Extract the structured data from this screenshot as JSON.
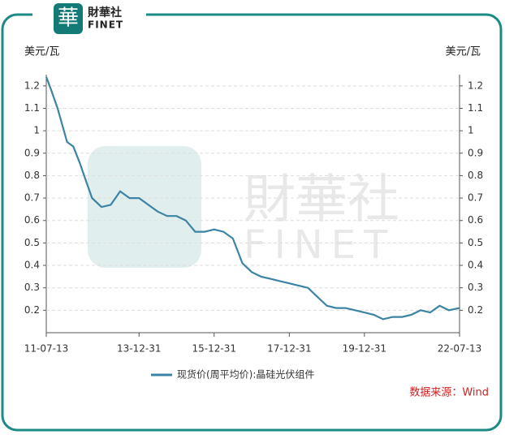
{
  "logo": {
    "cn": "財華社",
    "en": "FINET"
  },
  "chart_data": {
    "type": "line",
    "y_label": "美元/瓦",
    "y2_label": "美元/瓦",
    "source": "数据来源：Wind",
    "x": [
      "11-07-13",
      "11-08-31",
      "11-10-31",
      "11-12-31",
      "12-01-31",
      "12-03-31",
      "12-05-31",
      "12-07-31",
      "12-09-30",
      "12-12-31",
      "13-03-31",
      "13-06-30",
      "13-09-30",
      "13-12-31",
      "14-03-31",
      "14-06-30",
      "14-09-30",
      "14-12-31",
      "15-03-31",
      "15-06-30",
      "15-09-30",
      "15-12-31",
      "16-03-31",
      "16-06-30",
      "16-09-30",
      "16-12-31",
      "17-03-31",
      "17-06-30",
      "17-09-30",
      "17-12-31",
      "18-03-31",
      "18-06-30",
      "18-09-30",
      "18-12-31",
      "19-03-31",
      "19-06-30",
      "19-09-30",
      "19-12-31",
      "20-03-31",
      "20-06-30",
      "20-09-30",
      "20-12-31",
      "21-03-31",
      "21-06-30",
      "21-09-30",
      "21-12-31",
      "22-03-31",
      "22-07-13"
    ],
    "series": [
      {
        "name": "现货价(周平均价):晶硅光伏组件",
        "color": "#3b84a4",
        "values": [
          1.24,
          1.18,
          1.1,
          1.0,
          0.95,
          0.93,
          0.86,
          0.78,
          0.7,
          0.66,
          0.67,
          0.73,
          0.7,
          0.7,
          0.67,
          0.64,
          0.62,
          0.62,
          0.6,
          0.55,
          0.55,
          0.56,
          0.55,
          0.52,
          0.41,
          0.37,
          0.35,
          0.34,
          0.33,
          0.32,
          0.31,
          0.3,
          0.26,
          0.22,
          0.21,
          0.21,
          0.2,
          0.19,
          0.18,
          0.16,
          0.17,
          0.17,
          0.18,
          0.2,
          0.19,
          0.22,
          0.2,
          0.21
        ]
      }
    ],
    "xlim": [
      "11-07-13",
      "22-07-13"
    ],
    "xticks": [
      "11-07-13",
      "13-12-31",
      "15-12-31",
      "17-12-31",
      "19-12-31",
      "22-07-13"
    ],
    "ylim": [
      0.1,
      1.25
    ],
    "yticks": [
      0.2,
      0.3,
      0.4,
      0.5,
      0.6,
      0.7,
      0.8,
      0.9,
      1,
      1.1,
      1.2
    ],
    "y2lim": [
      0.1,
      1.25
    ],
    "y2ticks": [
      0.2,
      0.3,
      0.4,
      0.5,
      0.6,
      0.7,
      0.8,
      0.9,
      1,
      1.1,
      1.2
    ],
    "grid": true,
    "legend": "bottom"
  }
}
